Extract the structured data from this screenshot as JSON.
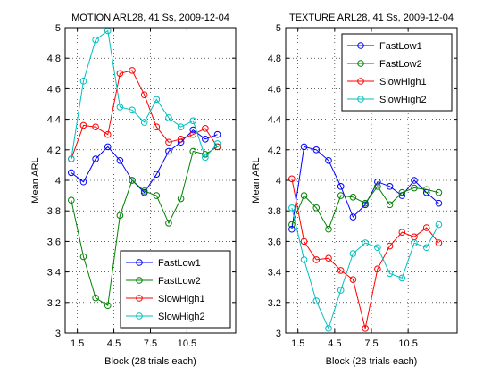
{
  "figure": {
    "background": "#ffffff"
  },
  "chart_data": [
    {
      "type": "line",
      "title": "MOTION ARL28, 41 Ss, 2009-12-04",
      "xlabel": "Block (28 trials each)",
      "ylabel": "Mean ARL",
      "xlim": [
        0.5,
        14.5
      ],
      "ylim": [
        3,
        5
      ],
      "xticks": [
        1.5,
        4.5,
        7.5,
        10.5
      ],
      "xtick_labels": [
        "1.5",
        "4.5",
        "7.5",
        "10.5"
      ],
      "yticks": [
        3,
        3.2,
        3.4,
        3.6,
        3.8,
        4,
        4.2,
        4.4,
        4.6,
        4.8,
        5
      ],
      "ytick_labels": [
        "3",
        "3.2",
        "3.4",
        "3.6",
        "3.8",
        "4",
        "4.2",
        "4.4",
        "4.6",
        "4.8",
        "5"
      ],
      "grid": true,
      "legend_position": "bottom-right",
      "x": [
        1,
        2,
        3,
        4,
        5,
        6,
        7,
        8,
        9,
        10,
        11,
        12,
        13,
        14
      ],
      "series": [
        {
          "name": "FastLow1",
          "color": "#0000ff",
          "values": [
            4.05,
            3.99,
            4.14,
            4.22,
            4.13,
            4.0,
            3.92,
            4.04,
            4.19,
            4.25,
            4.33,
            4.27,
            4.3,
            null
          ]
        },
        {
          "name": "FastLow2",
          "color": "#008000",
          "values": [
            3.87,
            3.5,
            3.23,
            3.18,
            3.77,
            4.0,
            3.93,
            3.9,
            3.72,
            3.88,
            4.19,
            4.17,
            4.22,
            null
          ]
        },
        {
          "name": "SlowHigh1",
          "color": "#ff0000",
          "values": [
            4.14,
            4.36,
            4.35,
            4.3,
            4.7,
            4.72,
            4.56,
            4.35,
            4.25,
            4.27,
            4.3,
            4.34,
            4.22,
            null
          ]
        },
        {
          "name": "SlowHigh2",
          "color": "#00bfbf",
          "values": [
            4.14,
            4.65,
            4.92,
            4.98,
            4.48,
            4.46,
            4.38,
            4.53,
            4.41,
            4.35,
            4.39,
            4.15,
            4.24,
            null
          ]
        }
      ]
    },
    {
      "type": "line",
      "title": "TEXTURE ARL28, 41 Ss, 2009-12-04",
      "xlabel": "Block (28 trials each)",
      "ylabel": "Mean ARL",
      "xlim": [
        0.5,
        14.5
      ],
      "ylim": [
        3,
        5
      ],
      "xticks": [
        1.5,
        4.5,
        7.5,
        10.5
      ],
      "xtick_labels": [
        "1.5",
        "4.5",
        "7.5",
        "10.5"
      ],
      "yticks": [
        3,
        3.2,
        3.4,
        3.6,
        3.8,
        4,
        4.2,
        4.4,
        4.6,
        4.8,
        5
      ],
      "ytick_labels": [
        "3",
        "3.2",
        "3.4",
        "3.6",
        "3.8",
        "4",
        "4.2",
        "4.4",
        "4.6",
        "4.8",
        "5"
      ],
      "grid": true,
      "legend_position": "top-right",
      "x": [
        1,
        2,
        3,
        4,
        5,
        6,
        7,
        8,
        9,
        10,
        11,
        12,
        13,
        14
      ],
      "series": [
        {
          "name": "FastLow1",
          "color": "#0000ff",
          "values": [
            3.68,
            4.22,
            4.2,
            4.13,
            3.96,
            3.76,
            3.84,
            3.99,
            3.96,
            3.9,
            4.0,
            3.92,
            3.85,
            null
          ]
        },
        {
          "name": "FastLow2",
          "color": "#008000",
          "values": [
            3.71,
            3.9,
            3.82,
            3.68,
            3.9,
            3.89,
            3.85,
            3.96,
            3.84,
            3.92,
            3.95,
            3.94,
            3.92,
            null
          ]
        },
        {
          "name": "SlowHigh1",
          "color": "#ff0000",
          "values": [
            4.01,
            3.6,
            3.48,
            3.49,
            3.41,
            3.35,
            3.03,
            3.42,
            3.57,
            3.66,
            3.63,
            3.69,
            3.59,
            null
          ]
        },
        {
          "name": "SlowHigh2",
          "color": "#00bfbf",
          "values": [
            3.82,
            3.48,
            3.21,
            3.03,
            3.28,
            3.52,
            3.59,
            3.56,
            3.39,
            3.36,
            3.59,
            3.56,
            3.71,
            null
          ]
        }
      ]
    }
  ]
}
